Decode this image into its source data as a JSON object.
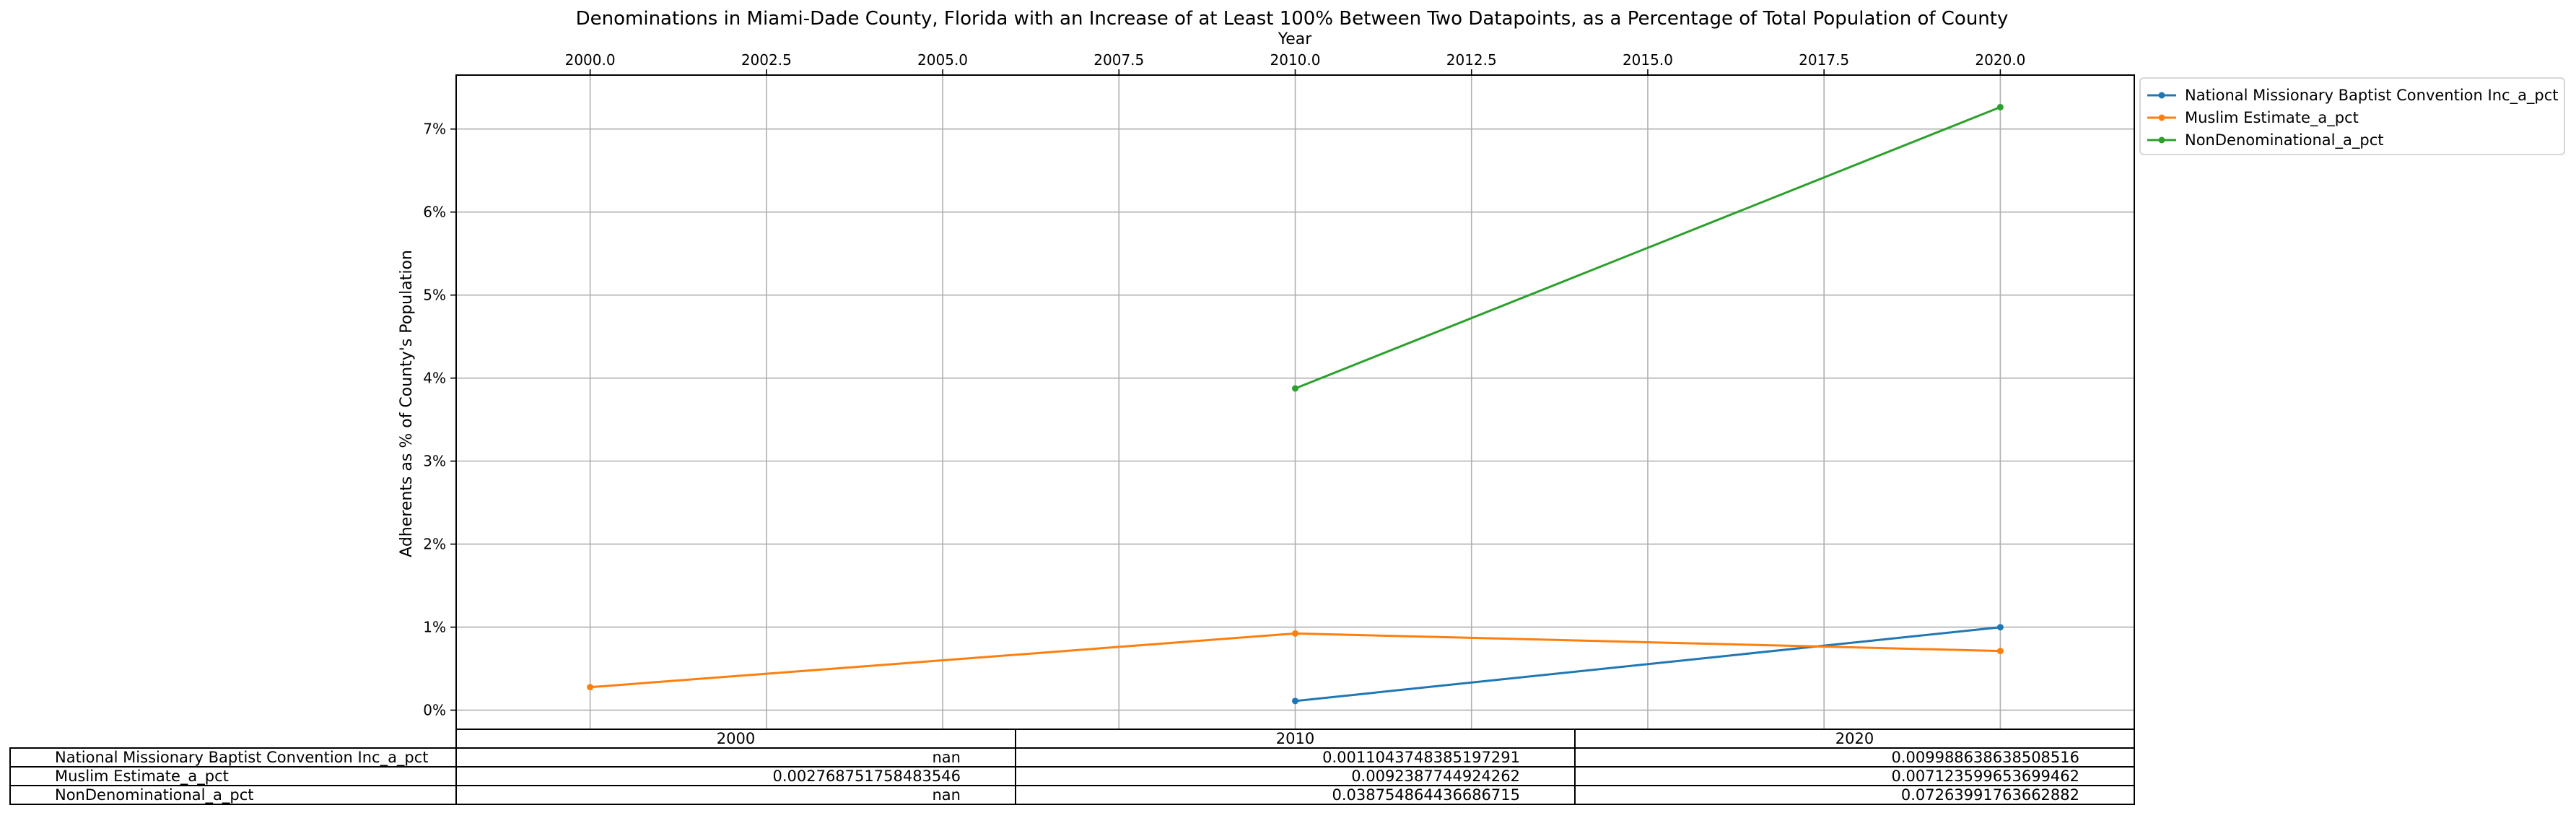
{
  "chart_data": {
    "type": "line",
    "title": "Denominations in Miami-Dade County, Florida with an Increase of at Least 100% Between Two Datapoints, as a Percentage of Total Population of County",
    "xlabel": "Year",
    "ylabel": "Adherents as % of County's Population",
    "xlim": [
      1998.1,
      2021.9
    ],
    "ylim": [
      -0.0023,
      0.0765
    ],
    "x_ticks": [
      2000.0,
      2002.5,
      2005.0,
      2007.5,
      2010.0,
      2012.5,
      2015.0,
      2017.5,
      2020.0
    ],
    "x_tick_labels": [
      "2000.0",
      "2002.5",
      "2005.0",
      "2007.5",
      "2010.0",
      "2012.5",
      "2015.0",
      "2017.5",
      "2020.0"
    ],
    "y_ticks": [
      0,
      0.01,
      0.02,
      0.03,
      0.04,
      0.05,
      0.06,
      0.07
    ],
    "y_tick_labels": [
      "0%",
      "1%",
      "2%",
      "3%",
      "4%",
      "5%",
      "6%",
      "7%"
    ],
    "x_axis_position": "top",
    "grid": true,
    "legend_position": "outside-upper-right",
    "x": [
      2000,
      2010,
      2020
    ],
    "series": [
      {
        "name": "National Missionary Baptist Convention Inc_a_pct",
        "color": "#1f77b4",
        "values": [
          null,
          0.0011043748385197291,
          0.009988638638508516
        ]
      },
      {
        "name": "Muslim Estimate_a_pct",
        "color": "#ff7f0e",
        "values": [
          0.002768751758483546,
          0.009238774492426,
          0.007123599653699462
        ]
      },
      {
        "name": "NonDenominational_a_pct",
        "color": "#2ca02c",
        "values": [
          null,
          0.038754864436686715,
          0.07263991763662882
        ]
      }
    ],
    "table": {
      "col_labels": [
        "2000",
        "2010",
        "2020"
      ],
      "rows": [
        {
          "label": "National Missionary Baptist Convention Inc_a_pct",
          "cells": [
            "nan",
            "0.0011043748385197291",
            "0.009988638638508516"
          ]
        },
        {
          "label": "Muslim Estimate_a_pct",
          "cells": [
            "0.002768751758483546",
            "0.0092387744924262",
            "0.007123599653699462"
          ]
        },
        {
          "label": "NonDenominational_a_pct",
          "cells": [
            "nan",
            "0.038754864436686715",
            "0.07263991763662882"
          ]
        }
      ]
    }
  }
}
